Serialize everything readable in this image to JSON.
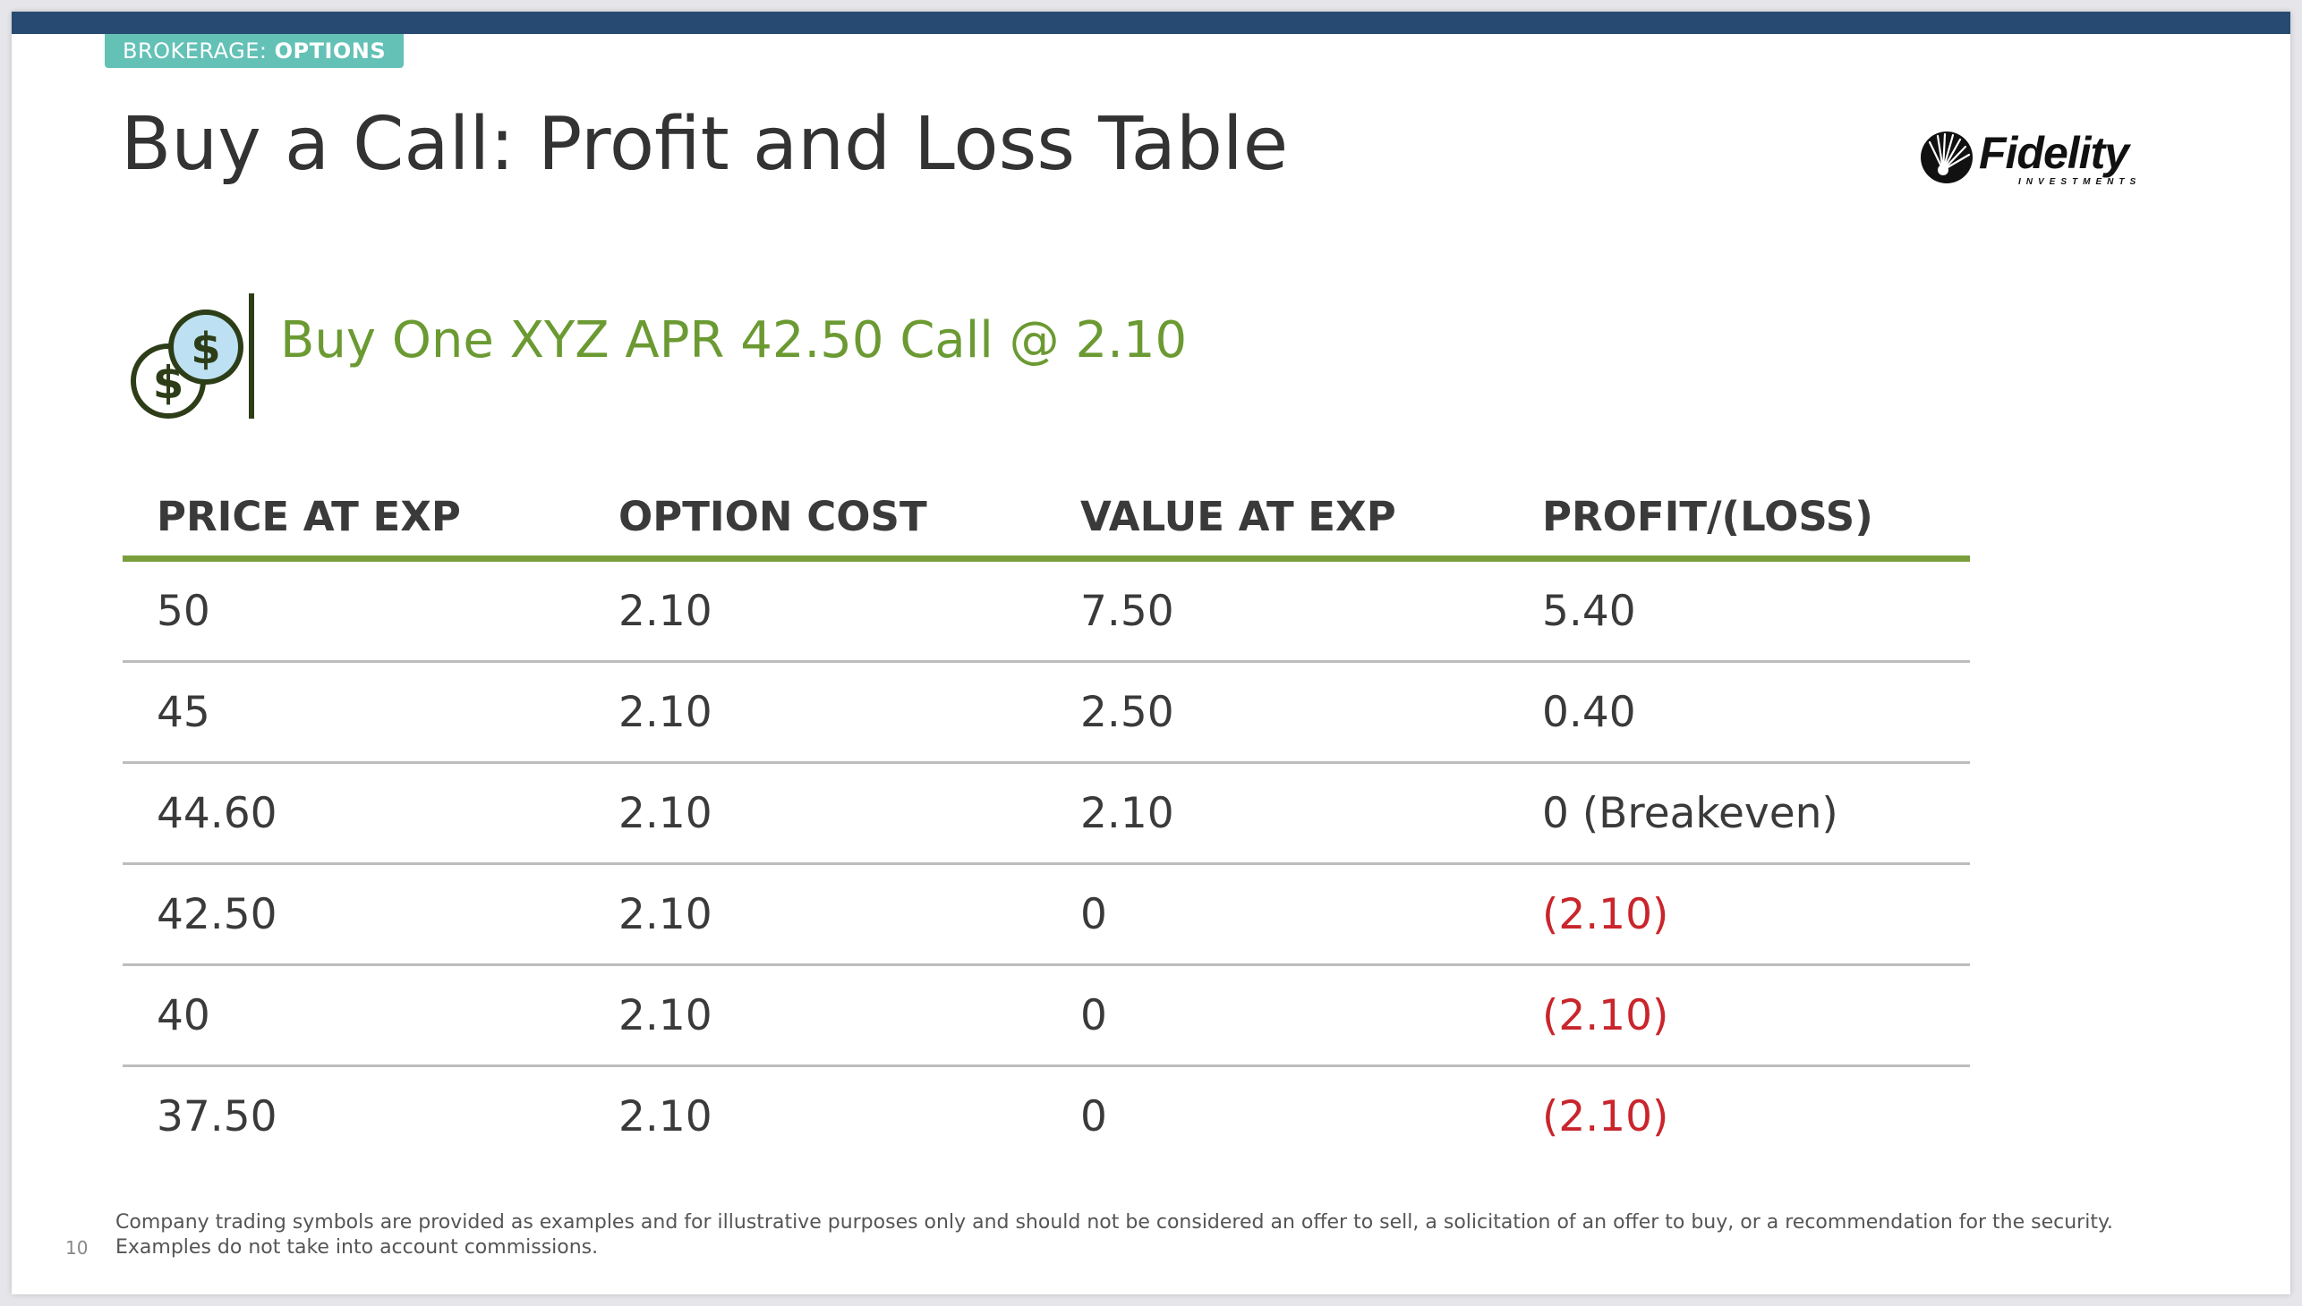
{
  "section_tag": {
    "prefix": "BROKERAGE: ",
    "emphasis": "OPTIONS",
    "color": "#63c1b6"
  },
  "title": "Buy a Call: Profit and Loss Table",
  "logo": {
    "icon": "fidelity-starburst-icon",
    "name": "Fidelity",
    "sub": "INVESTMENTS"
  },
  "trade": {
    "icon": "dollar-coins-icon",
    "heading": "Buy One XYZ APR 42.50 Call @ 2.10",
    "color": "#6b9a32"
  },
  "table": {
    "headers": [
      "PRICE AT EXP",
      "OPTION COST",
      "VALUE AT EXP",
      "PROFIT/(LOSS)"
    ],
    "rows": [
      {
        "price": "50",
        "cost": "2.10",
        "value": "7.50",
        "pl": "5.40",
        "loss": false
      },
      {
        "price": "45",
        "cost": "2.10",
        "value": "2.50",
        "pl": "0.40",
        "loss": false
      },
      {
        "price": "44.60",
        "cost": "2.10",
        "value": "2.10",
        "pl": "0 (Breakeven)",
        "loss": false
      },
      {
        "price": "42.50",
        "cost": "2.10",
        "value": "0",
        "pl": "(2.10)",
        "loss": true
      },
      {
        "price": "40",
        "cost": "2.10",
        "value": "0",
        "pl": "(2.10)",
        "loss": true
      },
      {
        "price": "37.50",
        "cost": "2.10",
        "value": "0",
        "pl": "(2.10)",
        "loss": true
      }
    ],
    "loss_color": "#c9252c",
    "rule_color": "#7a9e3c"
  },
  "disclaimer": {
    "line1": "Company trading symbols are provided as examples and for illustrative purposes only and should not be considered an offer to  sell, a solicitation of an offer to buy, or a recommendation for the security.",
    "line2": "Examples do not take into account commissions."
  },
  "page_number": "10",
  "colors": {
    "top_bar": "#274a72",
    "title_text": "#333333"
  }
}
